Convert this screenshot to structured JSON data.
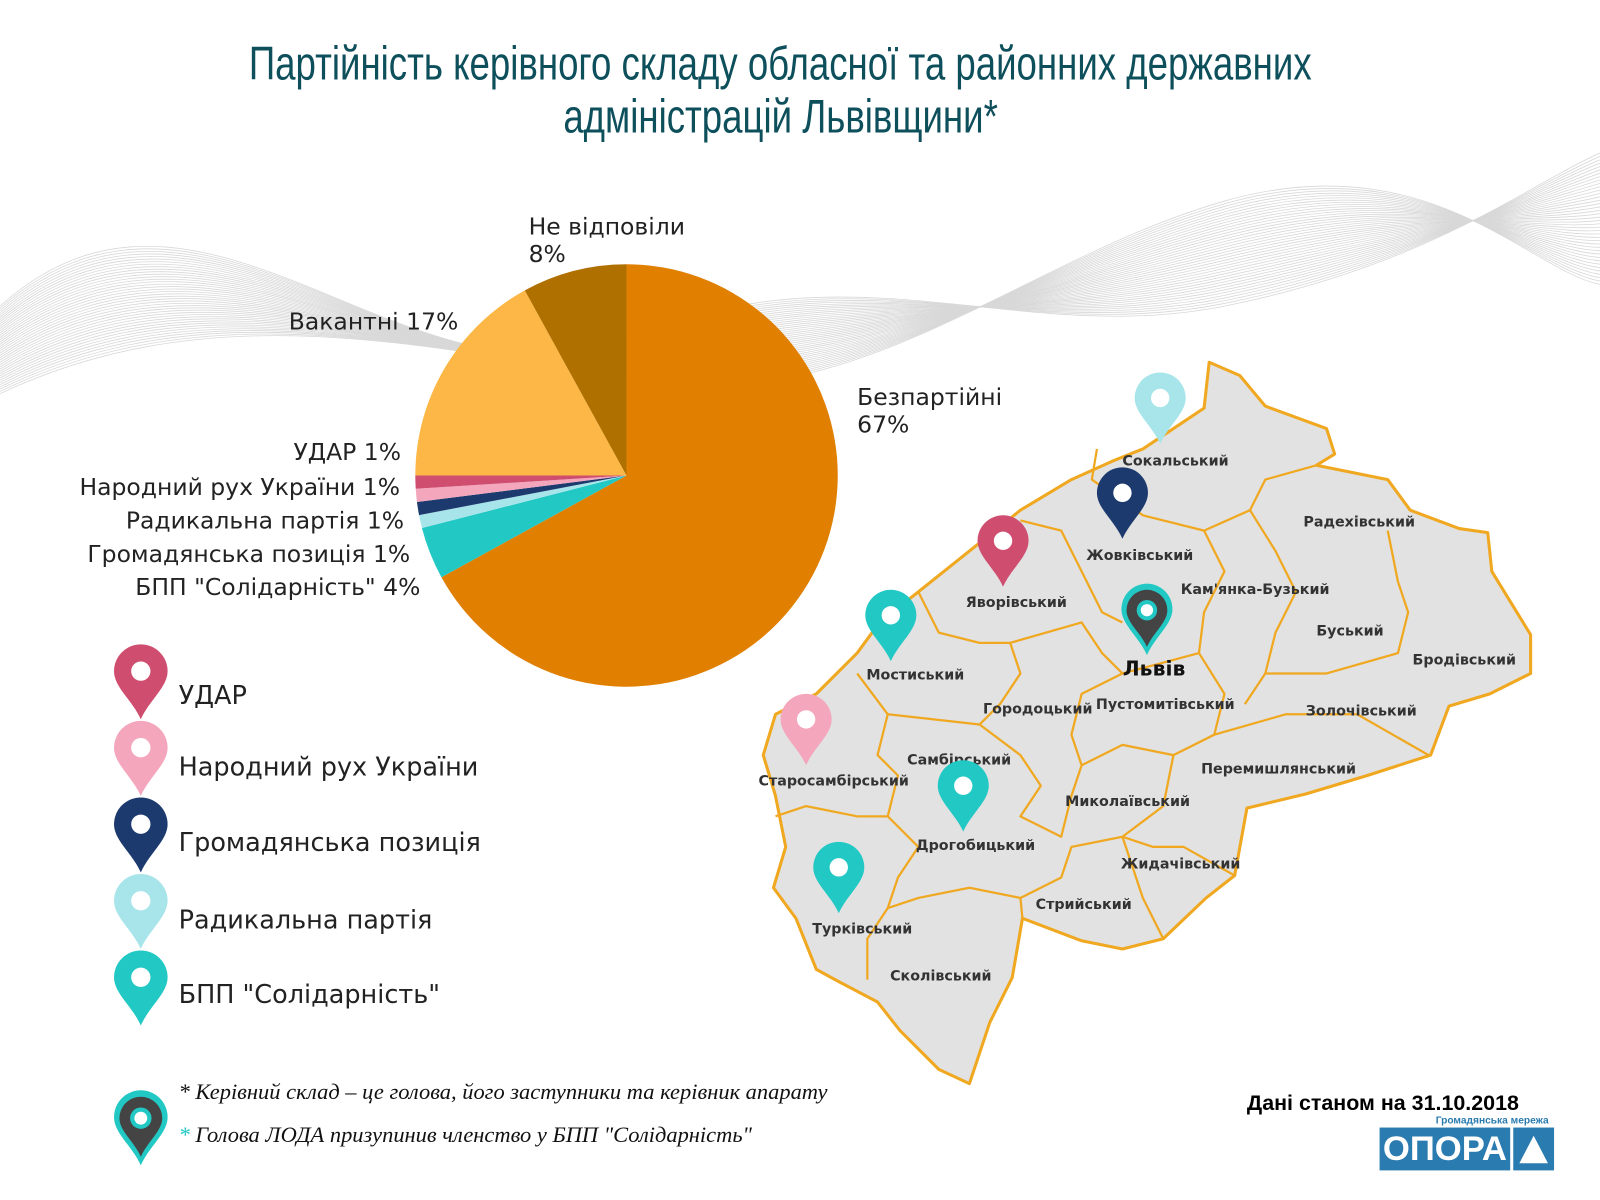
{
  "title_line1": "Партійність керівного складу обласної та районних державних",
  "title_line2": "адміністрацій Львівщини*",
  "chart_data": {
    "type": "pie",
    "title": "Партійність керівного складу обласної та районних державних адміністрацій Львівщини*",
    "slices": [
      {
        "label": "Безпартійні",
        "value": 67,
        "color": "#e07f00"
      },
      {
        "label": "БПП \"Солідарність\"",
        "value": 4,
        "color": "#22c8c4"
      },
      {
        "label": "Громадянська позиція",
        "value": 1,
        "color": "#a8e5ea"
      },
      {
        "label": "Радикальна партія",
        "value": 1,
        "color": "#1c3a6e"
      },
      {
        "label": "Народний рух України",
        "value": 1,
        "color": "#f4a6bd"
      },
      {
        "label": "УДАР",
        "value": 1,
        "color": "#cf4d6f"
      },
      {
        "label": "Вакантні",
        "value": 17,
        "color": "#fdb746"
      },
      {
        "label": "Не відповіли",
        "value": 8,
        "color": "#b07000"
      }
    ],
    "labels": {
      "bezpartiini": "Безпартійні",
      "bezpartiini_pct": "67%",
      "ne_vidpovily": "Не відповіли",
      "ne_vidpovily_pct": "8%",
      "vakantni": "Вакантні 17%",
      "udar": "УДАР 1%",
      "rukh": "Народний рух України 1%",
      "radykalna": "Радикальна партія 1%",
      "hromadianska": "Громадянська позиція 1%",
      "bpp": "БПП \"Солідарність\" 4%"
    }
  },
  "legend": [
    {
      "label": "УДАР",
      "color": "#cf4d6f"
    },
    {
      "label": "Народний рух України",
      "color": "#f4a6bd"
    },
    {
      "label": "Громадянська позиція",
      "color": "#1c3a6e"
    },
    {
      "label": "Радикальна партія",
      "color": "#a8e5ea"
    },
    {
      "label": "БПП \"Солідарність\"",
      "color": "#22c8c4"
    }
  ],
  "map": {
    "fill": "#e2e2e2",
    "border": "#f0a820",
    "districts": [
      "Сокальський",
      "Радехівський",
      "Жовківський",
      "Кам'янка-Бузький",
      "Яворівський",
      "Буський",
      "Бродівський",
      "Мостиський",
      "Городоцький",
      "Пустомитівський",
      "Золочівський",
      "Самбірський",
      "Старосамбірський",
      "Перемишлянський",
      "Миколаївський",
      "Дрогобицький",
      "Жидачівський",
      "Стрийський",
      "Турківський",
      "Сколівський"
    ],
    "city": "Львів",
    "pins": [
      {
        "district": "Сокальський",
        "color": "#a8e5ea"
      },
      {
        "district": "Жовківський",
        "color": "#1c3a6e"
      },
      {
        "district": "Яворівський",
        "color": "#cf4d6f"
      },
      {
        "district": "Мостиський",
        "color": "#22c8c4"
      },
      {
        "district": "Львів",
        "color": "#444444",
        "outline": "#22c8c4"
      },
      {
        "district": "Старосамбірський",
        "color": "#f4a6bd"
      },
      {
        "district": "Дрогобицький",
        "color": "#22c8c4"
      },
      {
        "district": "Турківський",
        "color": "#22c8c4"
      }
    ]
  },
  "footnotes": {
    "note1": "* Керівний склад – це голова, його заступники та керівник апарату",
    "note2_star": "*",
    "note2": " Голова ЛОДА призупинив членство у БПП \"Солідарність\""
  },
  "date": "Дані станом на 31.10.2018",
  "brand": {
    "subtitle": "Громадянська мережа",
    "name": "ОПОРА",
    "color": "#2a7bb0"
  }
}
